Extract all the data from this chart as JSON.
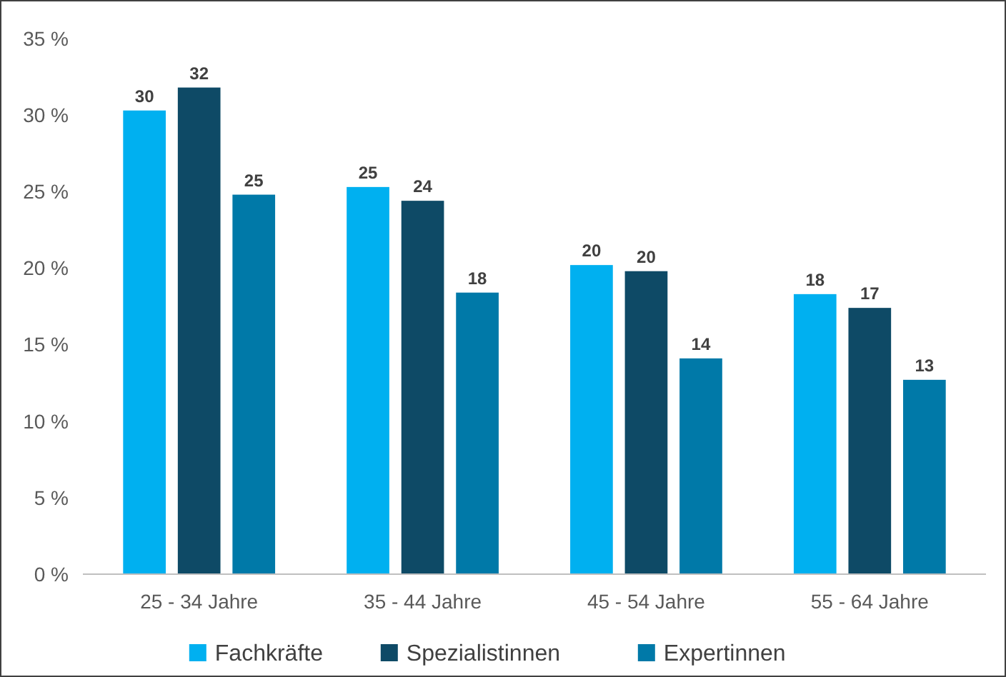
{
  "chart_data": {
    "type": "bar",
    "categories": [
      "25 - 34 Jahre",
      "35 - 44 Jahre",
      "45 - 54 Jahre",
      "55 - 64 Jahre"
    ],
    "series": [
      {
        "name": "Fachkräfte",
        "color": "#00b0f0",
        "values": [
          30.3,
          25.3,
          20.2,
          18.3
        ],
        "value_labels": [
          "30",
          "25",
          "20",
          "18"
        ]
      },
      {
        "name": "Spezialistinnen",
        "color": "#0e4a66",
        "values": [
          31.8,
          24.4,
          19.8,
          17.4
        ],
        "value_labels": [
          "32",
          "24",
          "20",
          "17"
        ]
      },
      {
        "name": "Expertinnen",
        "color": "#0079a8",
        "values": [
          24.8,
          18.4,
          14.1,
          12.7
        ],
        "value_labels": [
          "25",
          "18",
          "14",
          "13"
        ]
      }
    ],
    "ylim": [
      0,
      35
    ],
    "yticks": [
      {
        "value": 0,
        "label": "0 %"
      },
      {
        "value": 5,
        "label": "5 %"
      },
      {
        "value": 10,
        "label": "10 %"
      },
      {
        "value": 15,
        "label": "15 %"
      },
      {
        "value": 20,
        "label": "20 %"
      },
      {
        "value": 25,
        "label": "25 %"
      },
      {
        "value": 30,
        "label": "30 %"
      },
      {
        "value": 35,
        "label": "35 %"
      }
    ],
    "grid": false,
    "legend": "bottom"
  }
}
